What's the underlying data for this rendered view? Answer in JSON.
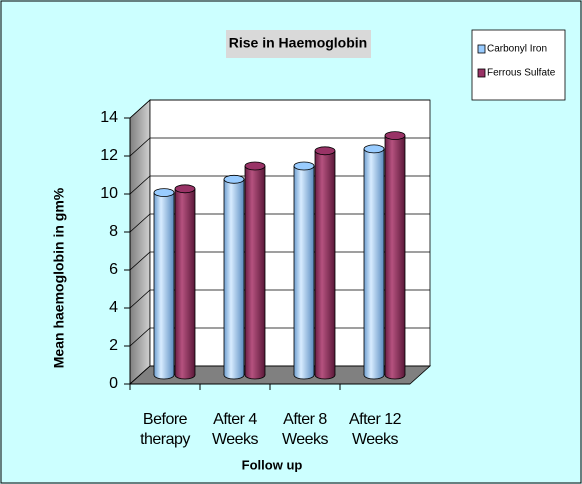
{
  "chart_data": {
    "type": "bar3d",
    "title": "Rise in Haemoglobin",
    "xlabel": "Follow up",
    "ylabel": "Mean haemoglobin in gm%",
    "categories": [
      "Before therapy",
      "After 4 Weeks",
      "After 8 Weeks",
      "After 12 Weeks"
    ],
    "series": [
      {
        "name": "Carbonyl Iron",
        "color": "#99ccff",
        "values": [
          9.6,
          10.3,
          11.0,
          11.9
        ]
      },
      {
        "name": "Ferrous Sulfate",
        "color": "#993366",
        "values": [
          9.8,
          11.0,
          11.8,
          12.6
        ]
      }
    ],
    "ylim": [
      0,
      14
    ],
    "yticks": [
      0,
      2,
      4,
      6,
      8,
      10,
      12,
      14
    ],
    "grid": true
  }
}
